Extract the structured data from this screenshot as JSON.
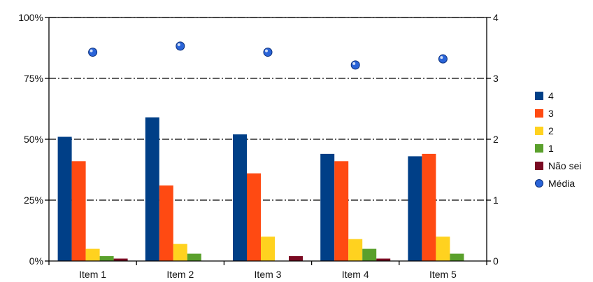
{
  "chart_data": {
    "type": "bar",
    "categories": [
      "Item 1",
      "Item 2",
      "Item 3",
      "Item 4",
      "Item 5"
    ],
    "series": [
      {
        "name": "4",
        "color": "#003f87",
        "values": [
          51,
          59,
          52,
          44,
          43
        ]
      },
      {
        "name": "3",
        "color": "#ff4a12",
        "values": [
          41,
          31,
          36,
          41,
          44
        ]
      },
      {
        "name": "2",
        "color": "#ffd21f",
        "values": [
          5,
          7,
          10,
          9,
          10
        ]
      },
      {
        "name": "1",
        "color": "#5aa02c",
        "values": [
          2,
          3,
          0,
          5,
          3
        ]
      },
      {
        "name": "Não sei",
        "color": "#7a0a22",
        "values": [
          1,
          0,
          2,
          1,
          0
        ]
      }
    ],
    "secondary_series": {
      "name": "Média",
      "type": "scatter",
      "color": "#2a64d8",
      "values": [
        3.43,
        3.53,
        3.43,
        3.22,
        3.32
      ]
    },
    "ylim": [
      0,
      100
    ],
    "y_ticks": [
      "0%",
      "25%",
      "50%",
      "75%",
      "100%"
    ],
    "y2lim": [
      0,
      4
    ],
    "y2_ticks": [
      "0",
      "1",
      "2",
      "3",
      "4"
    ],
    "grid": true,
    "legend": "right"
  }
}
